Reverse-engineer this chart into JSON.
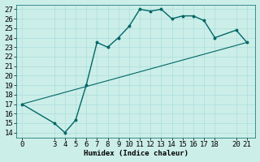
{
  "xlabel": "Humidex (Indice chaleur)",
  "bg_color": "#cceee8",
  "grid_color": "#aadddd",
  "line_color": "#006666",
  "ylim": [
    13.5,
    27.5
  ],
  "xlim": [
    -0.5,
    21.8
  ],
  "yticks": [
    14,
    15,
    16,
    17,
    18,
    19,
    20,
    21,
    22,
    23,
    24,
    25,
    26,
    27
  ],
  "xticks": [
    0,
    3,
    4,
    5,
    6,
    7,
    8,
    9,
    10,
    11,
    12,
    13,
    14,
    15,
    16,
    17,
    18,
    20,
    21
  ],
  "line1_x": [
    0,
    3,
    4,
    5,
    6,
    7,
    8,
    9,
    10,
    11,
    12,
    13,
    14,
    15,
    16,
    17,
    18,
    20,
    21
  ],
  "line1_y": [
    17,
    15,
    14,
    15.3,
    19,
    23.5,
    23,
    24,
    25.2,
    27,
    26.8,
    27,
    26,
    26.3,
    26.3,
    25.8,
    24,
    24.8,
    23.5
  ],
  "line2_x": [
    0,
    21
  ],
  "line2_y": [
    17,
    23.5
  ],
  "font_size": 6.5
}
